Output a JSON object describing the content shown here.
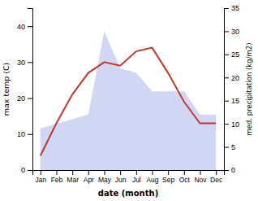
{
  "chart_data": {
    "type": "line",
    "xlabel": "date (month)",
    "ylabel": "max temp (C)",
    "y2label": "med. precipitation (kg/m2)",
    "categories": [
      "Jan",
      "Feb",
      "Mar",
      "Apr",
      "May",
      "Jun",
      "Jul",
      "Aug",
      "Sep",
      "Oct",
      "Nov",
      "Dec"
    ],
    "series": [
      {
        "type": "area",
        "axis": "y2",
        "color": "#bcc5ef",
        "values": [
          9,
          10,
          11,
          12,
          30,
          22,
          21,
          17,
          17,
          17,
          12,
          12
        ]
      },
      {
        "type": "line",
        "color": "#c0392b",
        "values": [
          4,
          13,
          21,
          27,
          30,
          29,
          33,
          34,
          27,
          19,
          13,
          13
        ]
      }
    ],
    "ylim": [
      0,
      45
    ],
    "yticks": [
      0,
      10,
      20,
      30,
      40
    ],
    "y2lim": [
      0,
      35
    ],
    "y2ticks": [
      0,
      5,
      10,
      15,
      20,
      25,
      30,
      35
    ]
  }
}
